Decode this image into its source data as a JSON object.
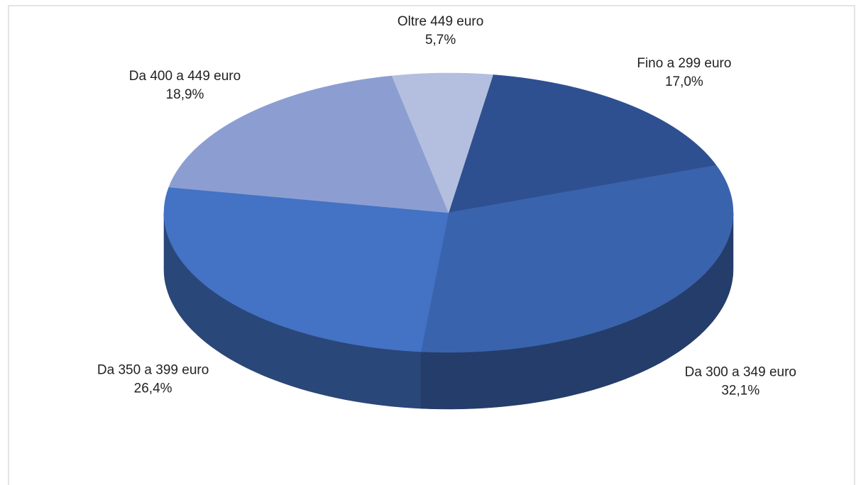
{
  "chart_data": {
    "type": "pie",
    "categories": [
      "Fino a 299 euro",
      "Da 300 a 349 euro",
      "Da 350 a 399 euro",
      "Da 400 a 449 euro",
      "Oltre 449 euro"
    ],
    "values": [
      17.0,
      32.1,
      26.4,
      18.9,
      5.7
    ],
    "value_labels": [
      "17,0%",
      "32,1%",
      "26,4%",
      "18,9%",
      "5,7%"
    ],
    "colors": [
      "#2f5090",
      "#3a63ad",
      "#4472c4",
      "#8c9ed1",
      "#b4bfdf"
    ]
  }
}
